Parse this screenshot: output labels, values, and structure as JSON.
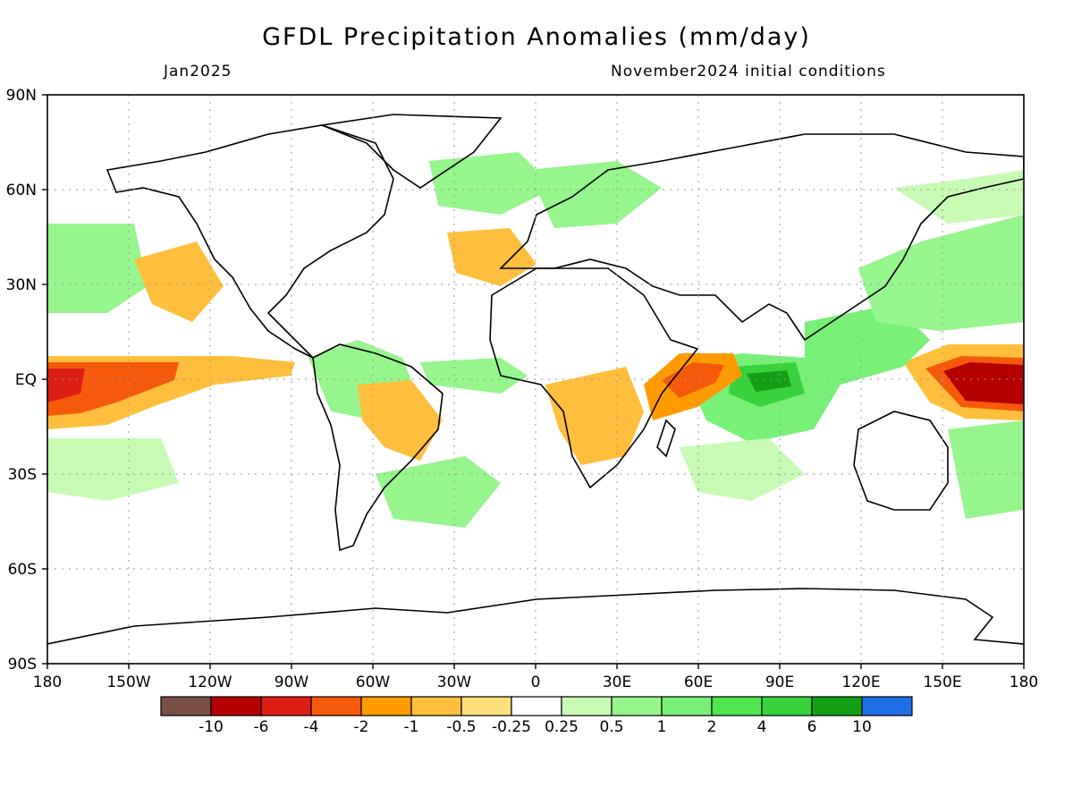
{
  "title": "GFDL Precipitation Anomalies (mm/day)",
  "valid_month": "Jan2025",
  "initial_conditions": "November2024 initial conditions",
  "lat_labels": [
    "90N",
    "60N",
    "30N",
    "EQ",
    "30S",
    "60S",
    "90S"
  ],
  "lon_labels": [
    "180",
    "150W",
    "120W",
    "90W",
    "60W",
    "30W",
    "0",
    "30E",
    "60E",
    "90E",
    "120E",
    "150E",
    "180"
  ],
  "colorbar": {
    "colors": [
      "#7a4f45",
      "#b40000",
      "#dc1e14",
      "#f55a0a",
      "#ff9b00",
      "#ffbe3c",
      "#ffe07a",
      "#ffffff",
      "#c8fcb4",
      "#96f58c",
      "#78f078",
      "#50e650",
      "#37d23c",
      "#14a014",
      "#1e6ee6"
    ],
    "labels": [
      "-10",
      "-6",
      "-4",
      "-2",
      "-1",
      "-0.5",
      "-0.25",
      "0.25",
      "0.5",
      "1",
      "2",
      "4",
      "6",
      "10"
    ]
  }
}
